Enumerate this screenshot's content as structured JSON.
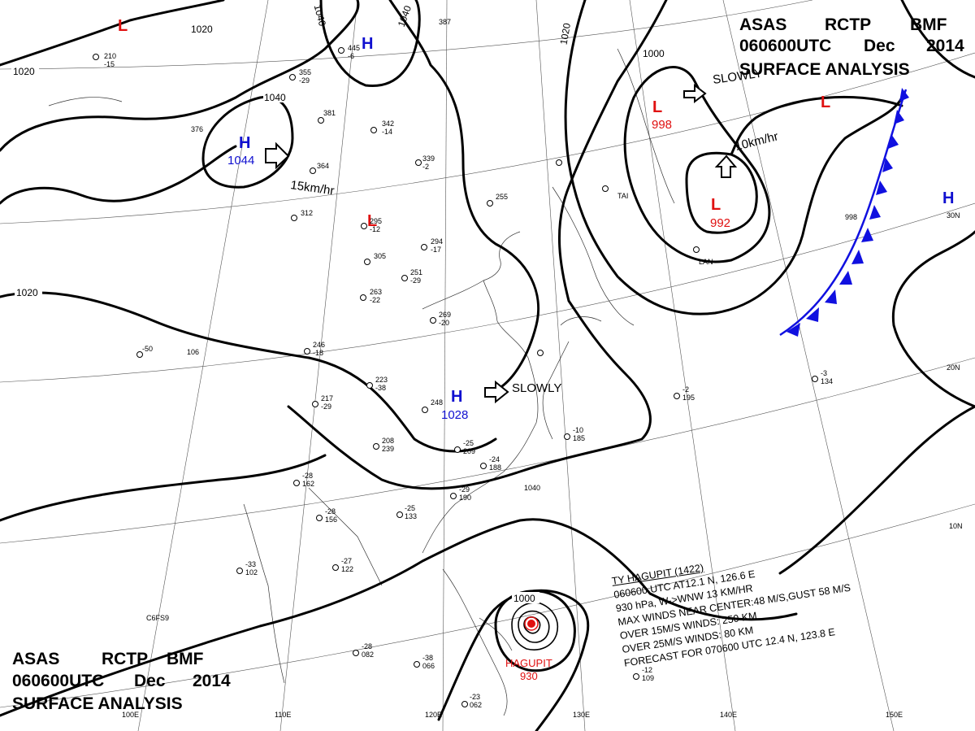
{
  "header_top": {
    "line1": [
      "ASAS",
      "RCTP",
      "BMF"
    ],
    "line2": [
      "060600UTC",
      "Dec",
      "2014"
    ],
    "line3": "SURFACE  ANALYSIS"
  },
  "header_bottom": {
    "line1": [
      "ASAS",
      "RCTP",
      "BMF"
    ],
    "line2": [
      "060600UTC",
      "Dec",
      "2014"
    ],
    "line3": "SURFACE  ANALYSIS"
  },
  "colors": {
    "high": "#1010d0",
    "low": "#e01010",
    "front": "#1010e0",
    "isobar": "#000000"
  },
  "pressure_centers": [
    {
      "type": "H",
      "value": "1044",
      "color": "blue"
    },
    {
      "type": "H",
      "value": "1028",
      "color": "blue"
    },
    {
      "type": "H",
      "value": "",
      "color": "blue"
    },
    {
      "type": "H",
      "value": "",
      "color": "blue"
    },
    {
      "type": "L",
      "value": "998",
      "color": "red"
    },
    {
      "type": "L",
      "value": "992",
      "color": "red"
    },
    {
      "type": "L",
      "value": "",
      "color": "red"
    },
    {
      "type": "L",
      "value": "",
      "color": "red"
    },
    {
      "type": "L",
      "value": "",
      "color": "red"
    }
  ],
  "isobar_labels": [
    "1020",
    "1020",
    "1040",
    "1040",
    "1020",
    "1040",
    "1000",
    "1020",
    "1000"
  ],
  "motion_labels": [
    "15km/hr",
    "SLOWLY",
    "SLOWLY",
    "10km/hr"
  ],
  "typhoon": {
    "name": "HAGUPIT",
    "pressure": "930",
    "ring_label": "1000",
    "info_lines": [
      "TY  HAGUPIT  (1422)",
      "060600 UTC  AT12.1 N, 126.6 E",
      "930 hPa, W->WNW  13 KM/HR",
      "MAX WINDS NEAR CENTER:48 M/S,GUST 58 M/S",
      "OVER 15M/S WINDS: 250 KM",
      "OVER 25M/S WINDS: 80 KM",
      "FORECAST FOR 070600 UTC 12.4 N, 123.8 E"
    ]
  },
  "grid_labels": {
    "longitudes": [
      "100E",
      "110E",
      "120E",
      "130E",
      "140E",
      "150E"
    ],
    "latitudes": [
      "30N",
      "20N",
      "10N"
    ]
  },
  "station_samples": [
    "210",
    "-15",
    "355",
    "-29",
    "445",
    "-6",
    "387",
    "381",
    "342",
    "-14",
    "364",
    "376",
    "339",
    "-2",
    "312",
    "295",
    "-12",
    "255",
    "294",
    "-17",
    "305",
    "251",
    "-29",
    "263",
    "-22",
    "269",
    "-20",
    "246",
    "-18",
    "223",
    "-38",
    "248",
    "217",
    "-29",
    "208",
    "239",
    "-25",
    "209",
    "-24",
    "188",
    "-29",
    "190",
    "-28",
    "162",
    "-28",
    "156",
    "-25",
    "133",
    "-27",
    "122",
    "-33",
    "102",
    "-28",
    "082",
    "-38",
    "066",
    "-23",
    "062",
    "-12",
    "109",
    "-3",
    "134",
    "-2",
    "195",
    "-10",
    "185",
    "-50",
    "106",
    "C6FS9",
    "1040",
    "998",
    "TAI",
    "LAN"
  ]
}
